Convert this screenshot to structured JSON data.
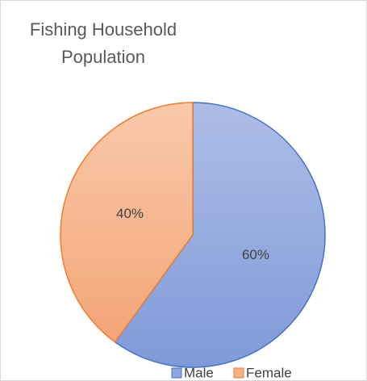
{
  "chart_data": {
    "type": "pie",
    "title": "Fishing Household Population",
    "categories": [
      "Male",
      "Female"
    ],
    "values": [
      60,
      40
    ],
    "value_labels": [
      "60%",
      "40%"
    ],
    "colors": [
      "#8fa6dc",
      "#f4b183"
    ],
    "edge_colors": [
      "#4472c4",
      "#ed7d31"
    ],
    "legend": "bottom"
  }
}
